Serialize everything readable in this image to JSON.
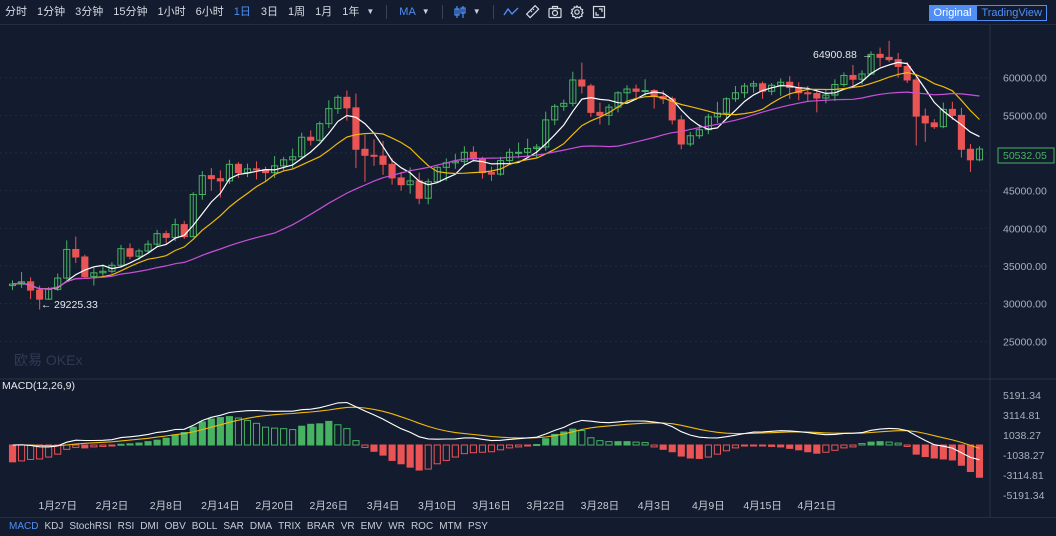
{
  "toolbar": {
    "timeframes": [
      "分时",
      "1分钟",
      "3分钟",
      "15分钟",
      "1小时",
      "6小时",
      "1日",
      "3日",
      "1周",
      "1月",
      "1年"
    ],
    "active_timeframe": "1日",
    "indicator": "MA",
    "view_original": "Original",
    "view_tradingview": "TradingView",
    "icons": [
      "chevron-down-icon",
      "candlestick-icon",
      "chevron-down-icon",
      "line-chart-icon",
      "ruler-icon",
      "camera-icon",
      "gear-icon",
      "fullscreen-icon"
    ]
  },
  "main_chart": {
    "watermark": "欧易 OKEx",
    "y_ticks": [
      "60000.00",
      "55000.00",
      "50000.00",
      "45000.00",
      "40000.00",
      "35000.00",
      "30000.00",
      "25000.00"
    ],
    "y_tick_values": [
      60000,
      55000,
      50000,
      45000,
      40000,
      35000,
      30000,
      25000
    ],
    "price_range": [
      20000,
      67000
    ],
    "x_ticks": [
      "1月27日",
      "2月2日",
      "2月8日",
      "2月14日",
      "2月20日",
      "2月26日",
      "3月4日",
      "3月10日",
      "3月16日",
      "3月22日",
      "3月28日",
      "4月3日",
      "4月9日",
      "4月15日",
      "4月21日"
    ],
    "high_label": "64900.88",
    "low_label": "29225.33",
    "last_price": "50532.05",
    "colors": {
      "up": "#47b262",
      "down": "#eb5454",
      "ma5": "#ffffff",
      "ma10": "#f0b90b",
      "ma30": "#c850d8"
    }
  },
  "macd": {
    "label": "MACD(12,26,9)",
    "y_ticks": [
      "5191.34",
      "3114.81",
      "1038.27",
      "-1038.27",
      "-3114.81",
      "-5191.34"
    ],
    "y_tick_values": [
      5191.34,
      3114.81,
      1038.27,
      -1038.27,
      -3114.81,
      -5191.34
    ]
  },
  "indicator_tabs": [
    "MACD",
    "KDJ",
    "StochRSI",
    "RSI",
    "DMI",
    "OBV",
    "BOLL",
    "SAR",
    "DMA",
    "TRIX",
    "BRAR",
    "VR",
    "EMV",
    "WR",
    "ROC",
    "MTM",
    "PSY"
  ],
  "active_indicator_tab": "MACD",
  "chart_data": {
    "type": "candlestick",
    "x_ticks": [
      "1月27日",
      "2月2日",
      "2月8日",
      "2月14日",
      "2月20日",
      "2月26日",
      "3月4日",
      "3月10日",
      "3月16日",
      "3月22日",
      "3月28日",
      "4月3日",
      "4月9日",
      "4月15日",
      "4月21日"
    ],
    "ohlc": [
      [
        32400,
        33100,
        31800,
        32600
      ],
      [
        32600,
        34200,
        32100,
        32900
      ],
      [
        32900,
        33500,
        30600,
        31800
      ],
      [
        31800,
        32400,
        29225,
        30600
      ],
      [
        30600,
        32200,
        30500,
        31900
      ],
      [
        31900,
        34000,
        31700,
        33400
      ],
      [
        33400,
        38400,
        33200,
        37200
      ],
      [
        37200,
        38900,
        35400,
        36200
      ],
      [
        36200,
        36500,
        33300,
        33600
      ],
      [
        33600,
        34800,
        32400,
        34100
      ],
      [
        34100,
        35200,
        33600,
        34300
      ],
      [
        34300,
        35500,
        34000,
        35100
      ],
      [
        35100,
        37800,
        34800,
        37300
      ],
      [
        37300,
        38000,
        35900,
        36300
      ],
      [
        36300,
        37300,
        35800,
        37000
      ],
      [
        37000,
        38400,
        36600,
        37900
      ],
      [
        37900,
        39800,
        37500,
        39300
      ],
      [
        39300,
        39700,
        37900,
        38800
      ],
      [
        38800,
        41300,
        38300,
        40500
      ],
      [
        40500,
        41000,
        38600,
        38900
      ],
      [
        38900,
        44800,
        38800,
        44500
      ],
      [
        44500,
        47600,
        43800,
        47000
      ],
      [
        47000,
        48000,
        45000,
        46600
      ],
      [
        46600,
        47700,
        44100,
        46300
      ],
      [
        46300,
        49100,
        45900,
        48500
      ],
      [
        48500,
        48800,
        46700,
        47400
      ],
      [
        47400,
        48600,
        46800,
        47900
      ],
      [
        47900,
        48900,
        46500,
        47800
      ],
      [
        47800,
        48200,
        46200,
        47400
      ],
      [
        47400,
        49600,
        46700,
        48300
      ],
      [
        48300,
        49500,
        47600,
        49100
      ],
      [
        49100,
        50600,
        48000,
        49500
      ],
      [
        49500,
        52700,
        49400,
        52100
      ],
      [
        52100,
        53000,
        51000,
        51700
      ],
      [
        51700,
        54200,
        51500,
        53900
      ],
      [
        53900,
        57000,
        53300,
        55900
      ],
      [
        55900,
        57700,
        55200,
        57400
      ],
      [
        57400,
        58300,
        54300,
        56000
      ],
      [
        56000,
        57900,
        48000,
        50500
      ],
      [
        50500,
        52400,
        46200,
        49700
      ],
      [
        49700,
        51800,
        48300,
        49600
      ],
      [
        49600,
        51600,
        47100,
        48500
      ],
      [
        48500,
        49300,
        45800,
        46700
      ],
      [
        46700,
        47500,
        45000,
        45800
      ],
      [
        45800,
        48100,
        44600,
        46300
      ],
      [
        46300,
        47400,
        43200,
        44000
      ],
      [
        44000,
        46600,
        43200,
        46200
      ],
      [
        46200,
        48300,
        46000,
        48100
      ],
      [
        48100,
        49300,
        46300,
        48700
      ],
      [
        48700,
        49900,
        47900,
        48900
      ],
      [
        48900,
        50900,
        48400,
        50100
      ],
      [
        50100,
        50900,
        48900,
        49200
      ],
      [
        49200,
        49500,
        46600,
        47400
      ],
      [
        47400,
        48200,
        46300,
        47200
      ],
      [
        47200,
        49500,
        47000,
        49000
      ],
      [
        49000,
        50600,
        48500,
        50100
      ],
      [
        50100,
        51400,
        49300,
        50100
      ],
      [
        50100,
        51900,
        49500,
        50600
      ],
      [
        50600,
        51200,
        49400,
        50800
      ],
      [
        50800,
        55500,
        50300,
        54400
      ],
      [
        54400,
        56500,
        53700,
        56200
      ],
      [
        56200,
        57100,
        55600,
        56600
      ],
      [
        56600,
        60800,
        56200,
        59700
      ],
      [
        59700,
        62000,
        57900,
        58900
      ],
      [
        58900,
        59200,
        54800,
        55400
      ],
      [
        55400,
        56700,
        53800,
        55000
      ],
      [
        55000,
        56500,
        53700,
        56100
      ],
      [
        56100,
        58200,
        55400,
        58000
      ],
      [
        58000,
        59000,
        56600,
        58500
      ],
      [
        58500,
        59100,
        57300,
        58200
      ],
      [
        58200,
        59800,
        57600,
        58300
      ],
      [
        58300,
        58500,
        55900,
        57500
      ],
      [
        57500,
        58300,
        56500,
        57200
      ],
      [
        57200,
        57500,
        53800,
        54400
      ],
      [
        54400,
        55000,
        50500,
        51200
      ],
      [
        51200,
        52800,
        50900,
        52300
      ],
      [
        52300,
        53800,
        51900,
        53100
      ],
      [
        53100,
        55200,
        52500,
        54800
      ],
      [
        54800,
        56800,
        54000,
        55300
      ],
      [
        55300,
        57400,
        54500,
        57200
      ],
      [
        57200,
        58900,
        56800,
        58000
      ],
      [
        58000,
        59300,
        57300,
        58900
      ],
      [
        58900,
        59600,
        58000,
        59200
      ],
      [
        59200,
        59500,
        57200,
        58200
      ],
      [
        58200,
        59300,
        57700,
        59000
      ],
      [
        59000,
        59900,
        57600,
        59400
      ],
      [
        59400,
        60200,
        57200,
        58700
      ],
      [
        58700,
        59400,
        57000,
        58000
      ],
      [
        58000,
        58900,
        56800,
        57900
      ],
      [
        57900,
        58500,
        55400,
        57300
      ],
      [
        57300,
        58400,
        56600,
        57700
      ],
      [
        57700,
        59800,
        56900,
        59100
      ],
      [
        59100,
        60700,
        58800,
        60300
      ],
      [
        60300,
        61700,
        58900,
        59800
      ],
      [
        59800,
        61000,
        59100,
        60500
      ],
      [
        60500,
        63500,
        60400,
        63100
      ],
      [
        63100,
        64000,
        61500,
        62700
      ],
      [
        62700,
        64900.88,
        62100,
        62400
      ],
      [
        62400,
        63300,
        60000,
        61500
      ],
      [
        61500,
        62100,
        59300,
        59700
      ],
      [
        59700,
        60000,
        51000,
        54900
      ],
      [
        54900,
        55900,
        51500,
        54000
      ],
      [
        54000,
        54500,
        53200,
        53500
      ],
      [
        53500,
        56700,
        53300,
        55800
      ],
      [
        55800,
        56800,
        54400,
        55000
      ],
      [
        55000,
        56000,
        49400,
        50500
      ],
      [
        50500,
        51200,
        47500,
        49100
      ],
      [
        49100,
        50900,
        48900,
        50532.05
      ]
    ],
    "macd_hist": [
      -1750,
      -1650,
      -1500,
      -1450,
      -1250,
      -950,
      -450,
      -250,
      -300,
      -200,
      -150,
      -100,
      80,
      120,
      200,
      350,
      500,
      700,
      1050,
      1300,
      1850,
      2400,
      2700,
      2850,
      2950,
      2800,
      2550,
      2250,
      1850,
      1750,
      1700,
      1600,
      1950,
      2150,
      2200,
      2450,
      2100,
      1700,
      450,
      -250,
      -650,
      -1050,
      -1600,
      -1950,
      -2300,
      -2600,
      -2500,
      -1950,
      -1600,
      -1250,
      -900,
      -800,
      -750,
      -700,
      -500,
      -300,
      -200,
      -100,
      50,
      650,
      1100,
      1350,
      1650,
      1500,
      750,
      450,
      350,
      350,
      350,
      300,
      250,
      -200,
      -450,
      -700,
      -1150,
      -1350,
      -1400,
      -1250,
      -950,
      -600,
      -300,
      -100,
      -50,
      -100,
      -150,
      -200,
      -350,
      -500,
      -700,
      -850,
      -750,
      -550,
      -300,
      -200,
      150,
      300,
      350,
      300,
      200,
      -150,
      -950,
      -1200,
      -1350,
      -1450,
      -1550,
      -2100,
      -2750,
      -3350
    ],
    "y_range": [
      25000,
      65000
    ],
    "macd_range": [
      -5191.34,
      5191.34
    ]
  }
}
